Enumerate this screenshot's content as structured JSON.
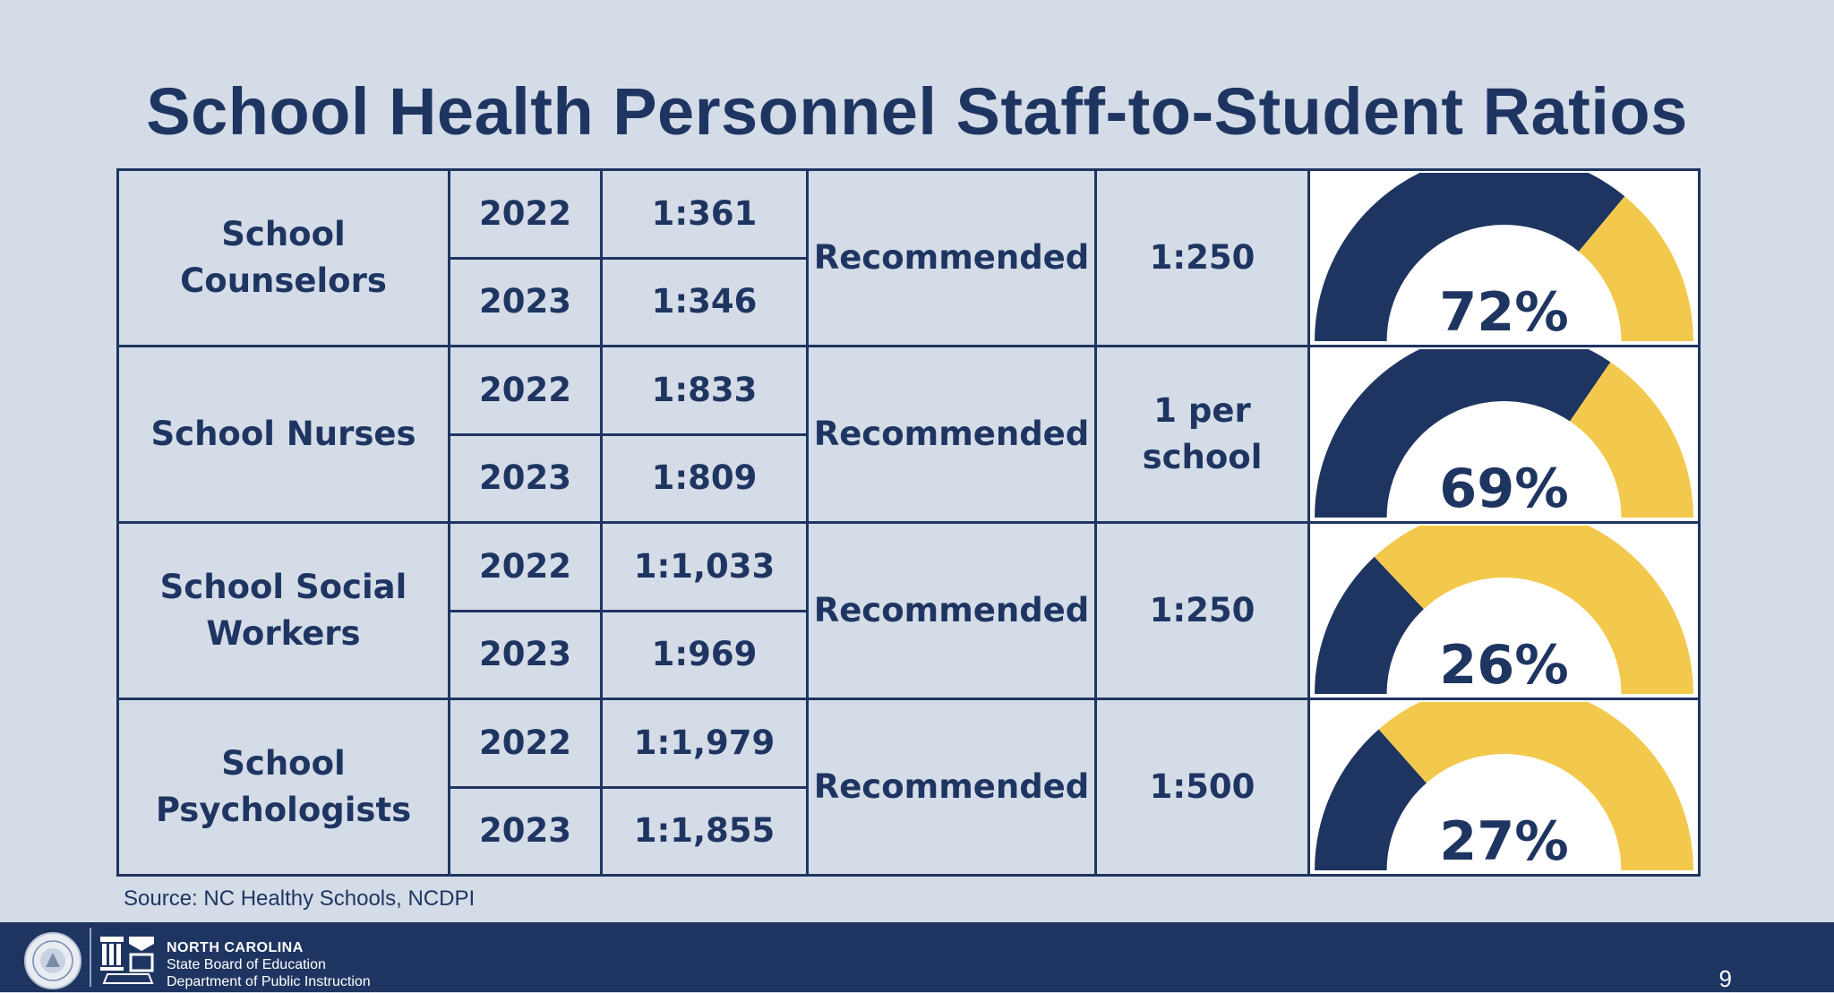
{
  "title": "School Health Personnel Staff-to-Student Ratios",
  "colors": {
    "navy": "#1f3561",
    "gold": "#f2c94c",
    "background": "#d4dce8"
  },
  "rows": [
    {
      "role": "School Counselors",
      "year_2022": "2022",
      "ratio_2022": "1:361",
      "year_2023": "2023",
      "ratio_2023": "1:346",
      "recommended_label": "Recommended",
      "recommended_value": "1:250",
      "gauge_label": "72%",
      "gauge_value": 72
    },
    {
      "role": "School Nurses",
      "year_2022": "2022",
      "ratio_2022": "1:833",
      "year_2023": "2023",
      "ratio_2023": "1:809",
      "recommended_label": "Recommended",
      "recommended_value": "1 per school",
      "gauge_label": "69%",
      "gauge_value": 69
    },
    {
      "role": "School Social Workers",
      "year_2022": "2022",
      "ratio_2022": "1:1,033",
      "year_2023": "2023",
      "ratio_2023": "1:969",
      "recommended_label": "Recommended",
      "recommended_value": "1:250",
      "gauge_label": "26%",
      "gauge_value": 26
    },
    {
      "role": "School Psychologists",
      "year_2022": "2022",
      "ratio_2022": "1:1,979",
      "year_2023": "2023",
      "ratio_2023": "1:1,855",
      "recommended_label": "Recommended",
      "recommended_value": "1:500",
      "gauge_label": "27%",
      "gauge_value": 27
    }
  ],
  "source": "Source:  NC Healthy Schools, NCDPI",
  "footer": {
    "org_state": "NORTH CAROLINA",
    "org_line1": "State Board of Education",
    "org_line2": "Department of Public Instruction",
    "page_number": "9",
    "seal_icon": "state-seal-icon",
    "logo_icon": "dpi-logo-icon"
  }
}
